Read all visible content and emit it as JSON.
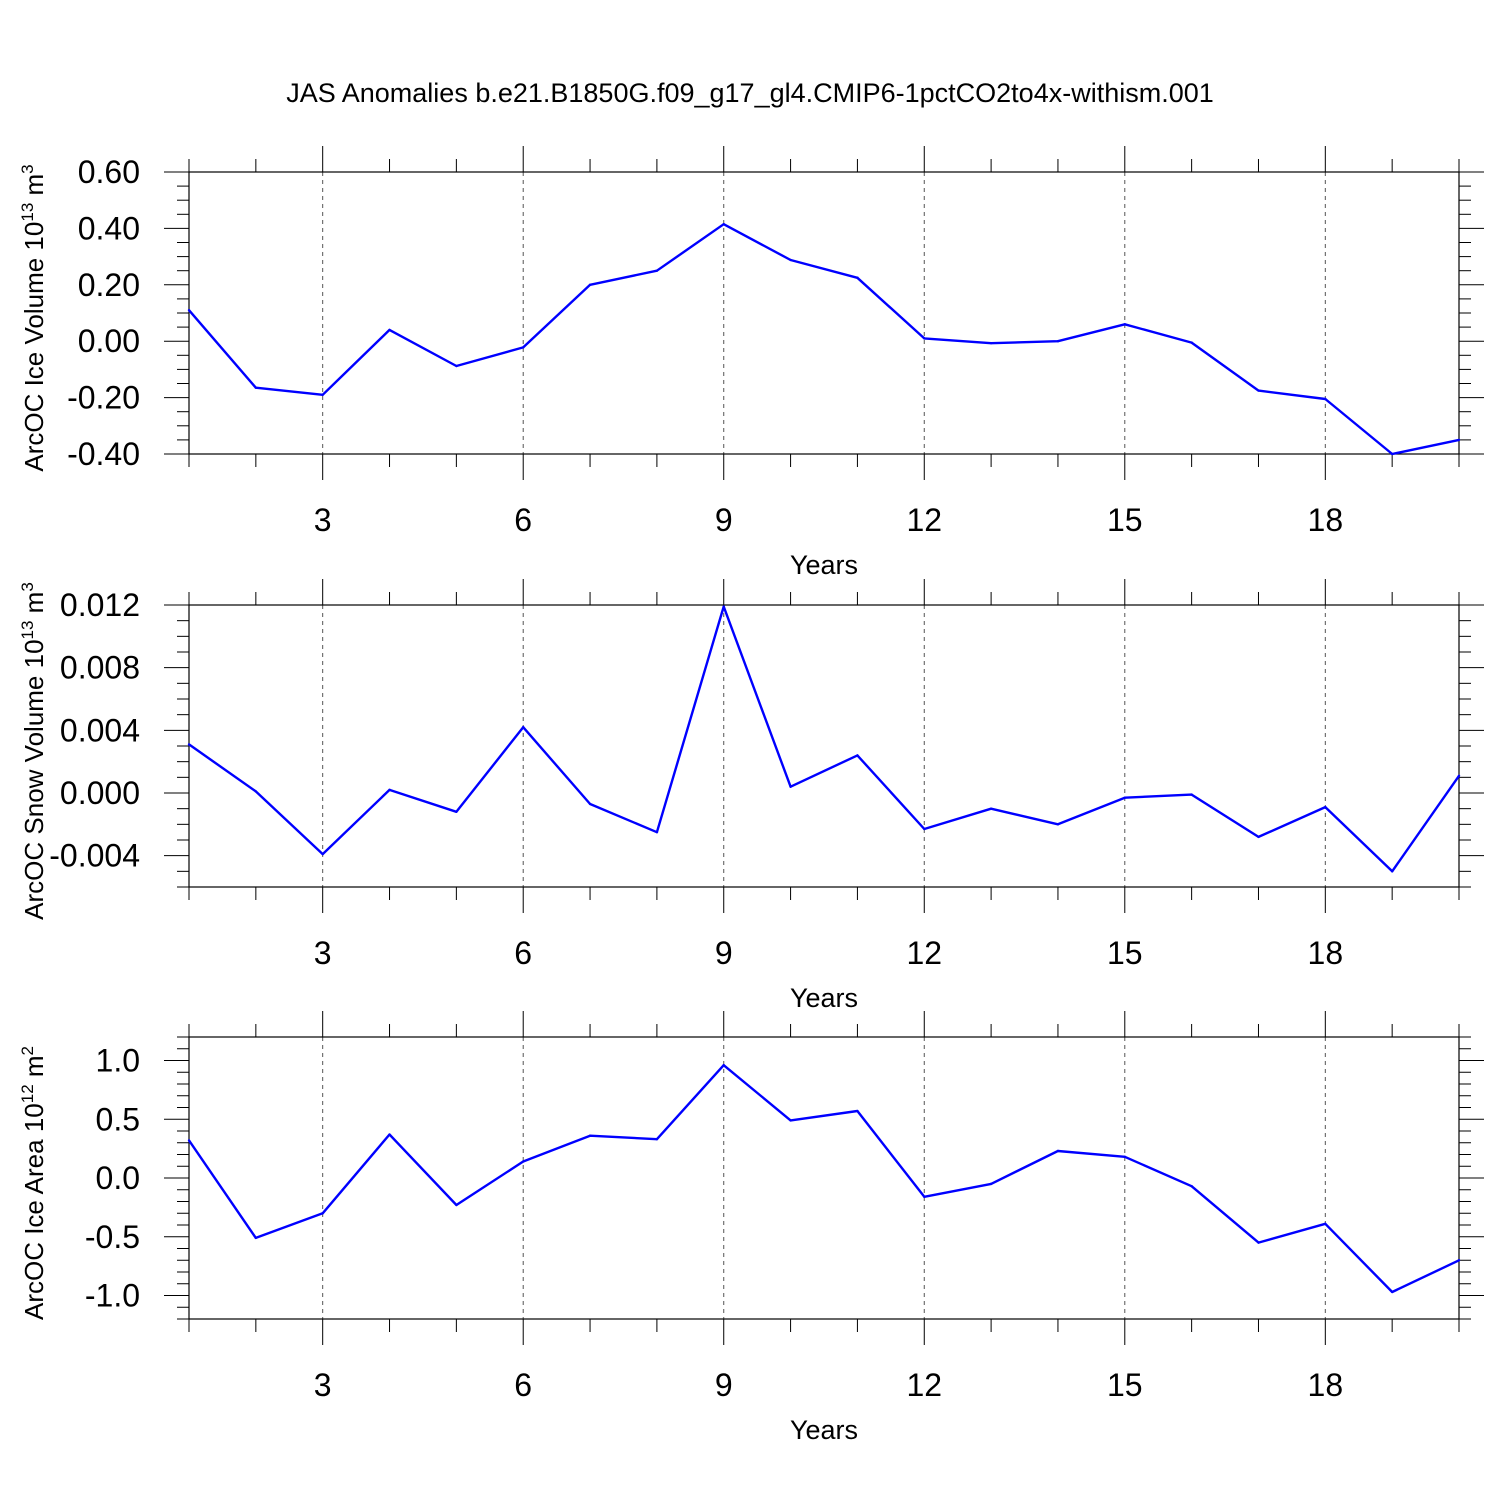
{
  "title": "JAS Anomalies b.e21.B1850G.f09_g17_gl4.CMIP6-1pctCO2to4x-withism.001",
  "colors": {
    "series": "#0000ff",
    "axis": "#000000",
    "grid": "#555555"
  },
  "chart_data": [
    {
      "type": "line",
      "ylabel": "ArcOC Ice Volume 10",
      "ylabel_exp": "13",
      "ylabel_unit": " m",
      "ylabel_unit_exp": "3",
      "xlabel": "Years",
      "xlim": [
        1,
        20
      ],
      "ylim": [
        -0.4,
        0.6
      ],
      "x_ticks": [
        3,
        6,
        9,
        12,
        15,
        18
      ],
      "x_tick_labels": [
        "3",
        "6",
        "9",
        "12",
        "15",
        "18"
      ],
      "y_ticks": [
        -0.4,
        -0.2,
        0.0,
        0.2,
        0.4,
        0.6
      ],
      "y_tick_labels": [
        "-0.40",
        "-0.20",
        "0.00",
        "0.20",
        "0.40",
        "0.60"
      ],
      "y_minor_step": 0.05,
      "grid": "vertical dashed at major x ticks",
      "x": [
        1,
        2,
        3,
        4,
        5,
        6,
        7,
        8,
        9,
        10,
        11,
        12,
        13,
        14,
        15,
        16,
        17,
        18,
        19,
        20
      ],
      "y": [
        0.11,
        -0.165,
        -0.19,
        0.04,
        -0.088,
        -0.022,
        0.2,
        0.25,
        0.415,
        0.288,
        0.225,
        0.01,
        -0.007,
        0.0,
        0.06,
        -0.005,
        -0.175,
        -0.205,
        -0.4,
        -0.35
      ]
    },
    {
      "type": "line",
      "ylabel": "ArcOC Snow Volume 10",
      "ylabel_exp": "13",
      "ylabel_unit": " m",
      "ylabel_unit_exp": "3",
      "xlabel": "Years",
      "xlim": [
        1,
        20
      ],
      "ylim": [
        -0.006,
        0.012
      ],
      "x_ticks": [
        3,
        6,
        9,
        12,
        15,
        18
      ],
      "x_tick_labels": [
        "3",
        "6",
        "9",
        "12",
        "15",
        "18"
      ],
      "y_ticks": [
        -0.004,
        0.0,
        0.004,
        0.008,
        0.012
      ],
      "y_tick_labels": [
        "-0.004",
        "0.000",
        "0.004",
        "0.008",
        "0.012"
      ],
      "y_minor_step": 0.001,
      "grid": "vertical dashed at major x ticks",
      "x": [
        1,
        2,
        3,
        4,
        5,
        6,
        7,
        8,
        9,
        10,
        11,
        12,
        13,
        14,
        15,
        16,
        17,
        18,
        19,
        20
      ],
      "y": [
        0.0031,
        0.0001,
        -0.0039,
        0.0002,
        -0.0012,
        0.0042,
        -0.0007,
        -0.0025,
        0.0119,
        0.0004,
        0.0024,
        -0.0023,
        -0.001,
        -0.002,
        -0.0003,
        -0.0001,
        -0.0028,
        -0.0009,
        -0.005,
        0.0011
      ]
    },
    {
      "type": "line",
      "ylabel": "ArcOC Ice Area 10",
      "ylabel_exp": "12",
      "ylabel_unit": " m",
      "ylabel_unit_exp": "2",
      "xlabel": "Years",
      "xlim": [
        1,
        20
      ],
      "ylim": [
        -1.2,
        1.2
      ],
      "x_ticks": [
        3,
        6,
        9,
        12,
        15,
        18
      ],
      "x_tick_labels": [
        "3",
        "6",
        "9",
        "12",
        "15",
        "18"
      ],
      "y_ticks": [
        -1.0,
        -0.5,
        0.0,
        0.5,
        1.0
      ],
      "y_tick_labels": [
        "-1.0",
        "-0.5",
        "0.0",
        "0.5",
        "1.0"
      ],
      "y_minor_step": 0.1,
      "grid": "vertical dashed at major x ticks",
      "x": [
        1,
        2,
        3,
        4,
        5,
        6,
        7,
        8,
        9,
        10,
        11,
        12,
        13,
        14,
        15,
        16,
        17,
        18,
        19,
        20
      ],
      "y": [
        0.32,
        -0.51,
        -0.3,
        0.37,
        -0.23,
        0.14,
        0.36,
        0.33,
        0.96,
        0.49,
        0.57,
        -0.16,
        -0.05,
        0.23,
        0.18,
        -0.07,
        -0.55,
        -0.39,
        -0.97,
        -0.7
      ]
    }
  ]
}
